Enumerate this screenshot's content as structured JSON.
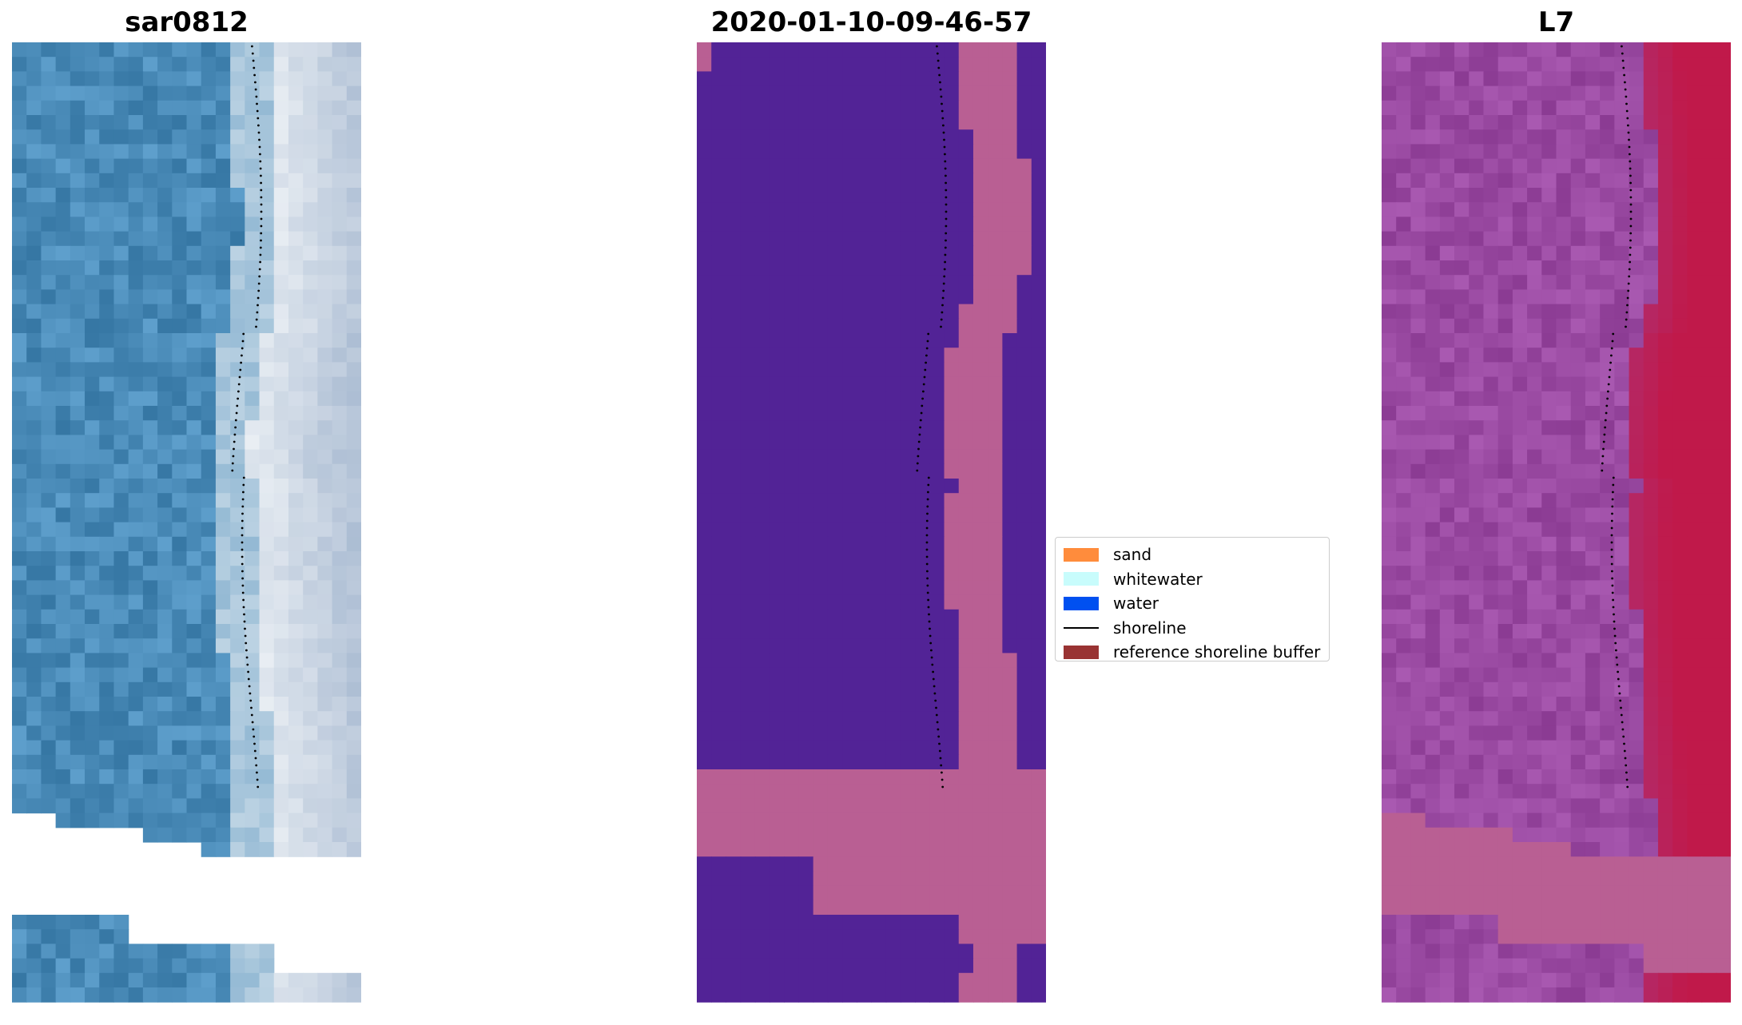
{
  "panels": [
    {
      "title": "sar0812",
      "kind": "rgb"
    },
    {
      "title": "2020-01-10-09-46-57",
      "kind": "classified"
    },
    {
      "title": "L7",
      "kind": "index"
    }
  ],
  "legend": {
    "items": [
      {
        "label": "sand",
        "color": "#ff8c3c",
        "kind": "patch"
      },
      {
        "label": "whitewater",
        "color": "#c8fcfc",
        "kind": "patch"
      },
      {
        "label": "water",
        "color": "#0050f0",
        "kind": "patch"
      },
      {
        "label": "shoreline",
        "color": "#000000",
        "kind": "line"
      },
      {
        "label": "reference shoreline buffer",
        "color": "#993333",
        "kind": "patch"
      }
    ]
  },
  "colors": {
    "rgb_water": "#4a8bb8",
    "rgb_whitewater": "#eef2f6",
    "classified_water": "#522396",
    "classified_buffer": "#b95f93",
    "index_low": "#9a4aa2",
    "index_high": "#c0194a",
    "shoreline": "#000000"
  }
}
